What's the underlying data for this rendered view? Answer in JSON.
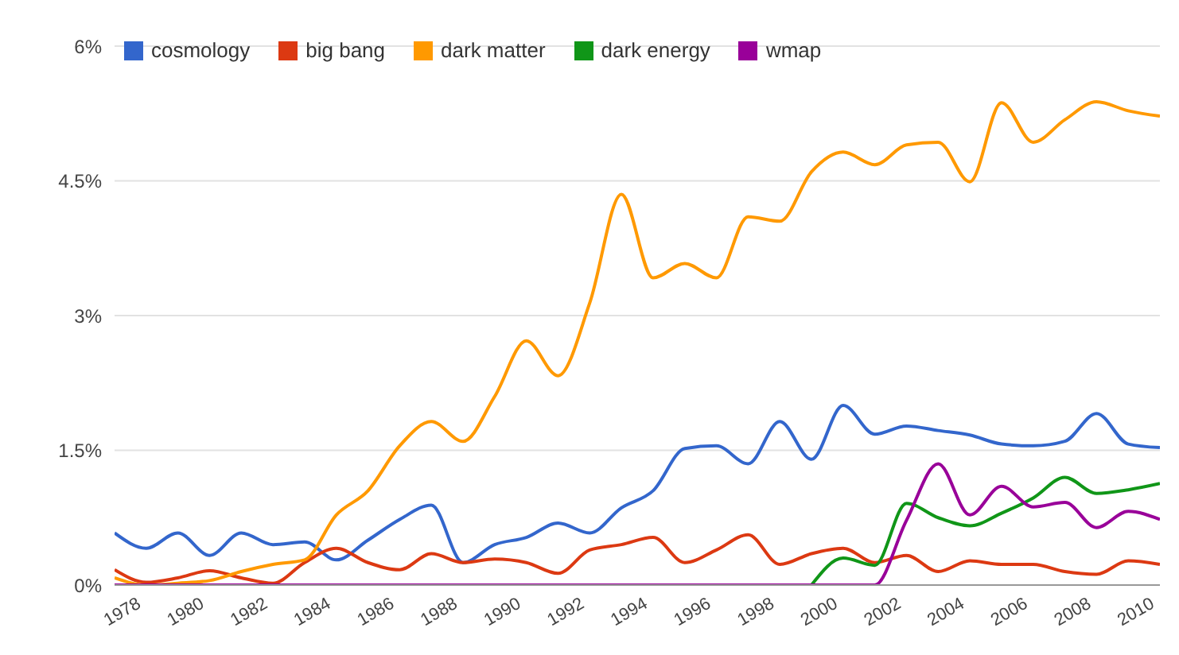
{
  "chart_data": {
    "type": "line",
    "x": [
      1978,
      1979,
      1980,
      1981,
      1982,
      1983,
      1984,
      1985,
      1986,
      1987,
      1988,
      1989,
      1990,
      1991,
      1992,
      1993,
      1994,
      1995,
      1996,
      1997,
      1998,
      1999,
      2000,
      2001,
      2002,
      2003,
      2004,
      2005,
      2006,
      2007,
      2008,
      2009,
      2010,
      2011
    ],
    "series": [
      {
        "name": "cosmology",
        "color": "#3366cc",
        "values": [
          0.58,
          0.41,
          0.58,
          0.33,
          0.58,
          0.45,
          0.48,
          0.28,
          0.5,
          0.73,
          0.89,
          0.25,
          0.45,
          0.53,
          0.69,
          0.58,
          0.86,
          1.05,
          1.52,
          1.55,
          1.35,
          1.82,
          1.4,
          2.0,
          1.68,
          1.77,
          1.72,
          1.67,
          1.57,
          1.55,
          1.6,
          1.91,
          1.57,
          1.53
        ]
      },
      {
        "name": "big bang",
        "color": "#dc3912",
        "values": [
          0.17,
          0.03,
          0.08,
          0.16,
          0.08,
          0.02,
          0.25,
          0.41,
          0.25,
          0.17,
          0.35,
          0.25,
          0.29,
          0.25,
          0.13,
          0.39,
          0.45,
          0.53,
          0.25,
          0.39,
          0.56,
          0.23,
          0.35,
          0.41,
          0.25,
          0.33,
          0.15,
          0.27,
          0.23,
          0.23,
          0.15,
          0.12,
          0.27,
          0.23
        ]
      },
      {
        "name": "dark matter",
        "color": "#ff9900",
        "values": [
          0.08,
          0,
          0.02,
          0.05,
          0.15,
          0.23,
          0.28,
          0.78,
          1.05,
          1.55,
          1.82,
          1.6,
          2.1,
          2.72,
          2.33,
          3.14,
          4.35,
          3.42,
          3.58,
          3.42,
          4.1,
          4.05,
          4.6,
          4.82,
          4.68,
          4.9,
          4.93,
          4.49,
          5.37,
          4.93,
          5.18,
          5.38,
          5.28,
          5.22
        ]
      },
      {
        "name": "dark energy",
        "color": "#109618",
        "values": [
          null,
          null,
          null,
          null,
          null,
          null,
          null,
          null,
          null,
          null,
          null,
          null,
          null,
          null,
          null,
          null,
          null,
          null,
          null,
          null,
          null,
          null,
          0,
          0.3,
          0.22,
          0.91,
          0.75,
          0.66,
          0.8,
          0.97,
          1.2,
          1.02,
          1.06,
          1.13
        ]
      },
      {
        "name": "wmap",
        "color": "#990099",
        "values": [
          0,
          0,
          0,
          0,
          0,
          0,
          0,
          0,
          0,
          0,
          0,
          0,
          0,
          0,
          0,
          0,
          0,
          0,
          0,
          0,
          0,
          0,
          0,
          0,
          0,
          0.72,
          1.35,
          0.78,
          1.1,
          0.87,
          0.92,
          0.64,
          0.82,
          0.73
        ]
      }
    ],
    "xlim": [
      1978,
      2011
    ],
    "xticks": [
      1978,
      1980,
      1982,
      1984,
      1986,
      1988,
      1990,
      1992,
      1994,
      1996,
      1998,
      2000,
      2002,
      2004,
      2006,
      2008,
      2010
    ],
    "ylim": [
      0,
      6
    ],
    "yticks": [
      {
        "value": 0,
        "label": "0%"
      },
      {
        "value": 1.5,
        "label": "1.5%"
      },
      {
        "value": 3,
        "label": "3%"
      },
      {
        "value": 4.5,
        "label": "4.5%"
      },
      {
        "value": 6,
        "label": "6%"
      }
    ],
    "grid": "y",
    "legend": "top left",
    "marker": "none",
    "line_style": "solid"
  }
}
